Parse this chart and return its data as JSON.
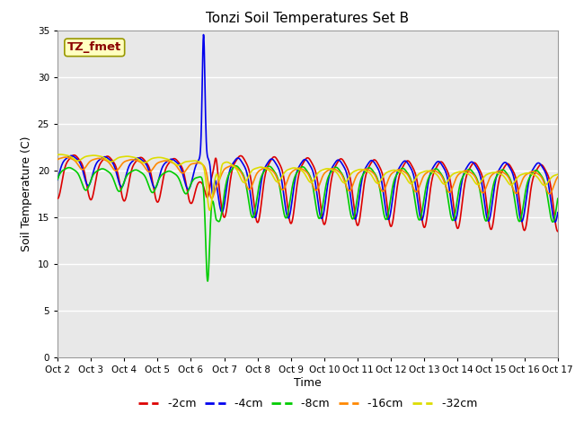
{
  "title": "Tonzi Soil Temperatures Set B",
  "xlabel": "Time",
  "ylabel": "Soil Temperature (C)",
  "ylim": [
    0,
    35
  ],
  "xlim": [
    0,
    15
  ],
  "fig_bg_color": "#ffffff",
  "plot_bg_color": "#e8e8e8",
  "grid_color": "#ffffff",
  "series_colors": {
    "-2cm": "#dd0000",
    "-4cm": "#0000ee",
    "-8cm": "#00cc00",
    "-16cm": "#ff8800",
    "-32cm": "#dddd00"
  },
  "annotation_text": "TZ_fmet",
  "annotation_color": "#8b0000",
  "annotation_bg": "#ffffc0",
  "annotation_edge": "#999900",
  "x_tick_labels": [
    "Oct 2",
    "Oct 3",
    "Oct 4",
    "Oct 5",
    "Oct 6",
    "Oct 7",
    "Oct 8",
    "Oct 9",
    "Oct 10",
    "Oct 11",
    "Oct 12",
    "Oct 13",
    "Oct 14",
    "Oct 15",
    "Oct 16",
    "Oct 17"
  ],
  "linewidth": 1.2,
  "title_fontsize": 11,
  "tick_fontsize": 7.5,
  "label_fontsize": 9,
  "legend_fontsize": 9
}
